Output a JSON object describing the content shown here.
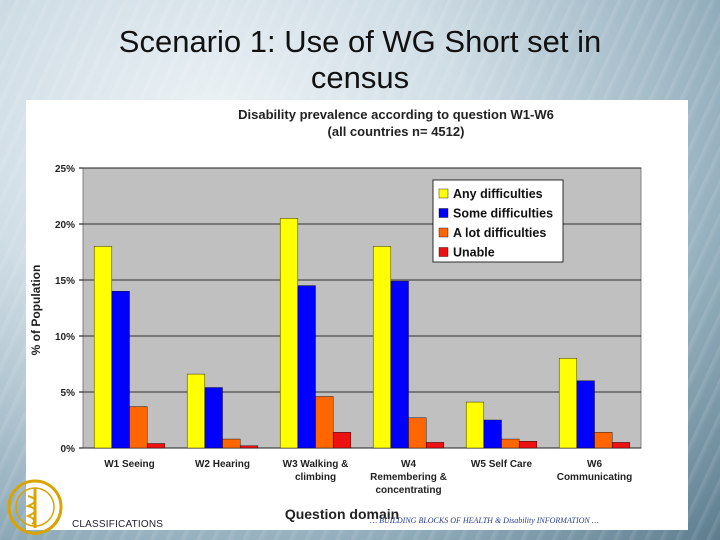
{
  "slide": {
    "title_line1": "Scenario 1: Use of WG Short set in",
    "title_line2": "census",
    "footer_left": "CLASSIFICATIONS",
    "footer_right": "… BUILDING BLOCKS OF HEALTH & Disability INFORMATION …"
  },
  "colors": {
    "any": "#ffff00",
    "some": "#0000ff",
    "alot": "#ff6600",
    "unable": "#ee1111",
    "plot_bg": "#c0c0c0",
    "brand": "#2a3f8f"
  },
  "chart_data": {
    "type": "bar",
    "title_line1": "Disability prevalence according to question W1-W6",
    "title_line2": "(all countries n= 4512)",
    "xlabel": "Question domain",
    "ylabel": "% of Population",
    "ylim": [
      0,
      25
    ],
    "yticks": [
      "0%",
      "5%",
      "10%",
      "15%",
      "20%",
      "25%"
    ],
    "grid": true,
    "legend_position": "top-right",
    "categories": [
      [
        "W1 Seeing"
      ],
      [
        "W2 Hearing"
      ],
      [
        "W3 Walking &",
        "climbing"
      ],
      [
        "W4",
        "Remembering &",
        "concentrating"
      ],
      [
        "W5 Self Care"
      ],
      [
        "W6",
        "Communicating"
      ]
    ],
    "series": [
      {
        "name": "Any difficulties",
        "color": "#ffff00",
        "values": [
          18,
          6.6,
          20.5,
          18,
          4.1,
          8
        ]
      },
      {
        "name": "Some difficulties",
        "color": "#0000ff",
        "values": [
          14,
          5.4,
          14.5,
          14.9,
          2.5,
          6
        ]
      },
      {
        "name": "A lot difficulties",
        "color": "#ff6600",
        "values": [
          3.7,
          0.8,
          4.6,
          2.7,
          0.8,
          1.4
        ]
      },
      {
        "name": "Unable",
        "color": "#ee1111",
        "values": [
          0.4,
          0.2,
          1.4,
          0.5,
          0.6,
          0.5
        ]
      }
    ]
  }
}
